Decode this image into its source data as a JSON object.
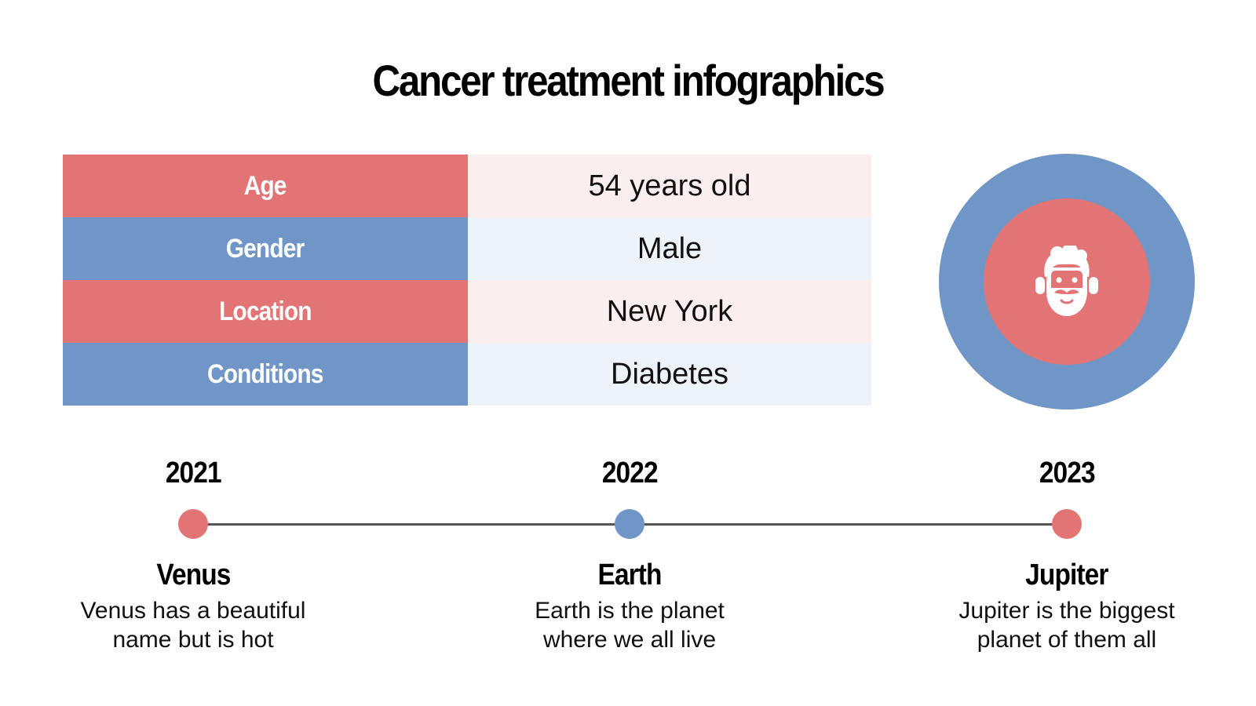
{
  "title": "Cancer treatment infographics",
  "colors": {
    "red": "#E27476",
    "blue": "#7096C7",
    "red_light": "#FBEEEE",
    "blue_light": "#EEF2F9",
    "line": "#555555"
  },
  "patient": {
    "rows": [
      {
        "label": "Age",
        "value": "54 years old",
        "tone": "red"
      },
      {
        "label": "Gender",
        "value": "Male",
        "tone": "blue"
      },
      {
        "label": "Location",
        "value": "New York",
        "tone": "red"
      },
      {
        "label": "Conditions",
        "value": "Diabetes",
        "tone": "blue"
      }
    ],
    "avatar_icon": "bearded-man-icon"
  },
  "timeline": [
    {
      "year": "2021",
      "name": "Venus",
      "desc_line1": "Venus has a beautiful",
      "desc_line2": "name but is hot",
      "tone": "red"
    },
    {
      "year": "2022",
      "name": "Earth",
      "desc_line1": "Earth is the planet",
      "desc_line2": "where we all live",
      "tone": "blue"
    },
    {
      "year": "2023",
      "name": "Jupiter",
      "desc_line1": "Jupiter is the biggest",
      "desc_line2": "planet of them all",
      "tone": "red"
    }
  ]
}
